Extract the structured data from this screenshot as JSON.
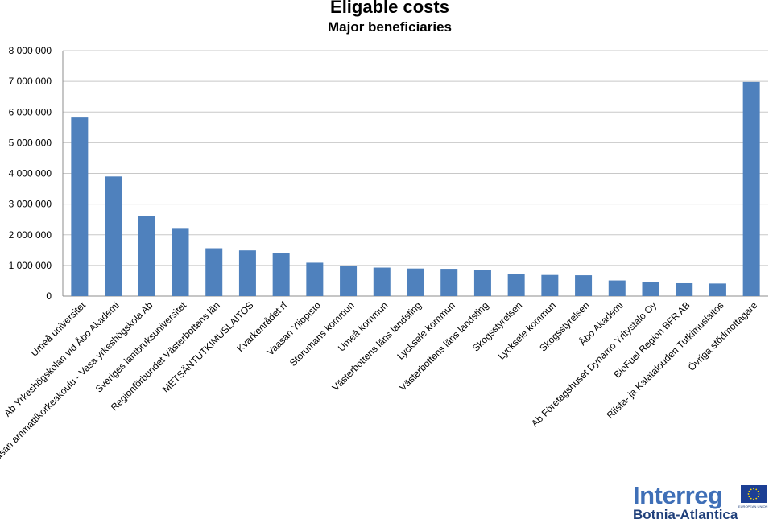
{
  "chart_data": {
    "type": "bar",
    "title": "Eligable costs",
    "subtitle": "Major beneficiaries",
    "xlabel": "",
    "ylabel": "",
    "ylim": [
      0,
      8000000
    ],
    "yticks": [
      0,
      1000000,
      2000000,
      3000000,
      4000000,
      5000000,
      6000000,
      7000000,
      8000000
    ],
    "ytick_labels": [
      "0",
      "1 000 000",
      "2 000 000",
      "3 000 000",
      "4 000 000",
      "5 000 000",
      "6 000 000",
      "7 000 000",
      "8 000 000"
    ],
    "grid": true,
    "bar_color": "#4f81bd",
    "categories": [
      "Umeå universitet",
      "Ab Yrkeshögskolan vid Åbo Akademi",
      "Vaasan ammattikorkeakoulu - Vasa yrkeshögskola Ab",
      "Sveriges lantbruksuniversitet",
      "Regionförbundet Västerbottens län",
      "METSÄNTUTKIMUSLAITOS",
      "Kvarkenrådet rf",
      "Vaasan Yliopisto",
      "Storumans kommun",
      "Umeå kommun",
      "Västerbottens läns landsting",
      "Lycksele kommun",
      "Västerbottens läns landsting",
      "Skogsstyrelsen",
      "Lycksele kommun",
      "Skogsstyrelsen",
      "Åbo Akademi",
      "Ab Företagshuset Dynamo Yritystalo Oy",
      "BioFuel Region BFR AB",
      "Riista- ja Kalatalouden Tutkimuslaitos",
      "Övriga stödmottagare"
    ],
    "values": [
      5820000,
      3900000,
      2600000,
      2220000,
      1560000,
      1490000,
      1390000,
      1090000,
      980000,
      930000,
      900000,
      890000,
      850000,
      710000,
      690000,
      680000,
      510000,
      450000,
      420000,
      410000,
      6980000
    ]
  },
  "logo": {
    "brand": "Interreg",
    "region": "Botnia-Atlantica",
    "eu_caption": "EUROPEAN UNION"
  }
}
